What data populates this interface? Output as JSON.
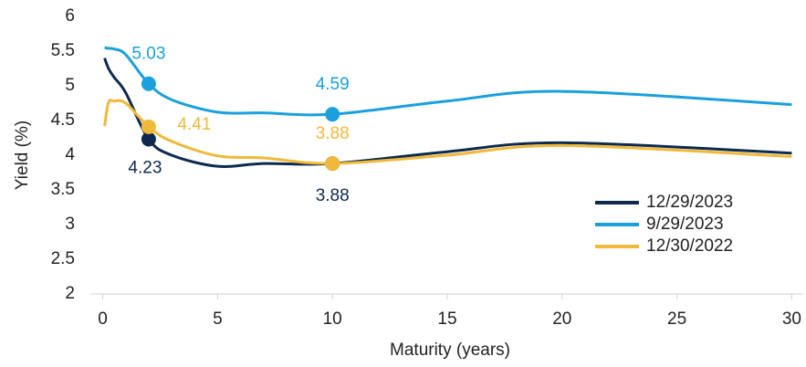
{
  "chart_data": {
    "type": "line",
    "x_label": "Maturity (years)",
    "y_label": "Yield (%)",
    "x": [
      0.08,
      0.25,
      0.5,
      1,
      2,
      3,
      5,
      7,
      10,
      15,
      20,
      30
    ],
    "series": [
      {
        "name": "12/29/2023",
        "color": "#0d2a4e",
        "values": [
          5.4,
          5.25,
          5.12,
          4.9,
          4.23,
          4.0,
          3.84,
          3.88,
          3.88,
          4.05,
          4.18,
          4.03
        ],
        "value_labels": [
          null,
          null,
          null,
          null,
          "4.23",
          null,
          null,
          null,
          "3.88",
          null,
          null,
          null
        ]
      },
      {
        "name": "9/29/2023",
        "color": "#1aa0dc",
        "values": [
          5.55,
          5.54,
          5.53,
          5.45,
          5.03,
          4.8,
          4.62,
          4.61,
          4.59,
          4.78,
          4.92,
          4.73
        ],
        "value_labels": [
          null,
          null,
          null,
          null,
          "5.03",
          null,
          null,
          null,
          "4.59",
          null,
          null,
          null
        ]
      },
      {
        "name": "12/30/2022",
        "color": "#f0b93a",
        "values": [
          4.42,
          4.76,
          4.78,
          4.75,
          4.41,
          4.2,
          3.99,
          3.96,
          3.88,
          4.0,
          4.14,
          3.98
        ],
        "value_labels": [
          null,
          null,
          null,
          null,
          "4.41",
          null,
          null,
          null,
          "3.88",
          null,
          null,
          null
        ]
      }
    ],
    "xlim": [
      -0.5,
      30.5
    ],
    "xticks": [
      0,
      5,
      10,
      15,
      20,
      25,
      30
    ],
    "ylim": [
      2,
      6
    ],
    "yticks": [
      2,
      2.5,
      3,
      3.5,
      4,
      4.5,
      5,
      5.5,
      6
    ],
    "legend": "lower right"
  }
}
